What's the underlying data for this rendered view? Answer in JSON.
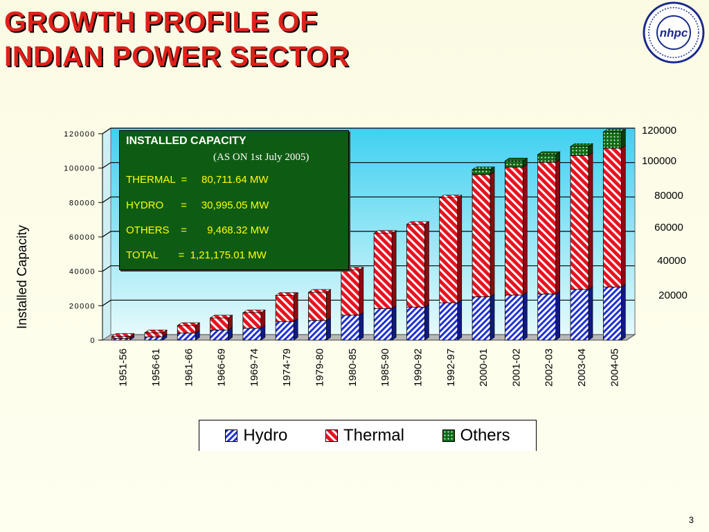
{
  "slide": {
    "title_line1": "GROWTH PROFILE OF",
    "title_line2": "INDIAN POWER SECTOR",
    "logo_text": "nhpc",
    "page_number": "3"
  },
  "info_box": {
    "heading": "INSTALLED CAPACITY",
    "subheading": "(AS ON 1st July 2005)",
    "rows": [
      "THERMAL  =     80,711.64 MW",
      "HYDRO      =     30,995.05 MW",
      "OTHERS    =       9,468.32 MW",
      "TOTAL       =  1,21,175.01 MW"
    ]
  },
  "colors": {
    "hydro": "#1d2fd8",
    "thermal": "#e8121f",
    "others": "#1b7a1b",
    "plot_background_top": "#3fd0f0",
    "plot_background_bottom": "#e6fafb",
    "info_box_background": "#0e5c13"
  },
  "chart_data": {
    "type": "bar",
    "stacked": true,
    "categories": [
      "1951-56",
      "1956-61",
      "1961-66",
      "1966-69",
      "1969-74",
      "1974-79",
      "1979-80",
      "1980-85",
      "1985-90",
      "1990-92",
      "1992-97",
      "2000-01",
      "2001-02",
      "2002-03",
      "2003-04",
      "2004-05"
    ],
    "series": [
      {
        "name": "Hydro",
        "values": [
          1000,
          1900,
          4100,
          5900,
          6900,
          10800,
          11400,
          14500,
          18300,
          19200,
          21700,
          25200,
          26200,
          26800,
          29500,
          30900
        ]
      },
      {
        "name": "Thermal",
        "values": [
          1200,
          2400,
          4400,
          7000,
          9000,
          15200,
          16400,
          26300,
          43800,
          48100,
          61000,
          71100,
          74400,
          76600,
          77900,
          80700
        ]
      },
      {
        "name": "Others",
        "values": [
          0,
          0,
          0,
          0,
          0,
          0,
          0,
          0,
          0,
          0,
          0,
          2800,
          3600,
          4500,
          5200,
          9400
        ]
      }
    ],
    "ylabel": "Installed Capacity",
    "ylim": [
      0,
      120000
    ],
    "y_ticks_left": [
      "0",
      "20000",
      "40000",
      "60000",
      "80000",
      "100000",
      "120000"
    ],
    "y_ticks_right": [
      "20000",
      "40000",
      "60000",
      "80000",
      "100000",
      "120000"
    ],
    "grid": true,
    "legend_position": "bottom"
  }
}
